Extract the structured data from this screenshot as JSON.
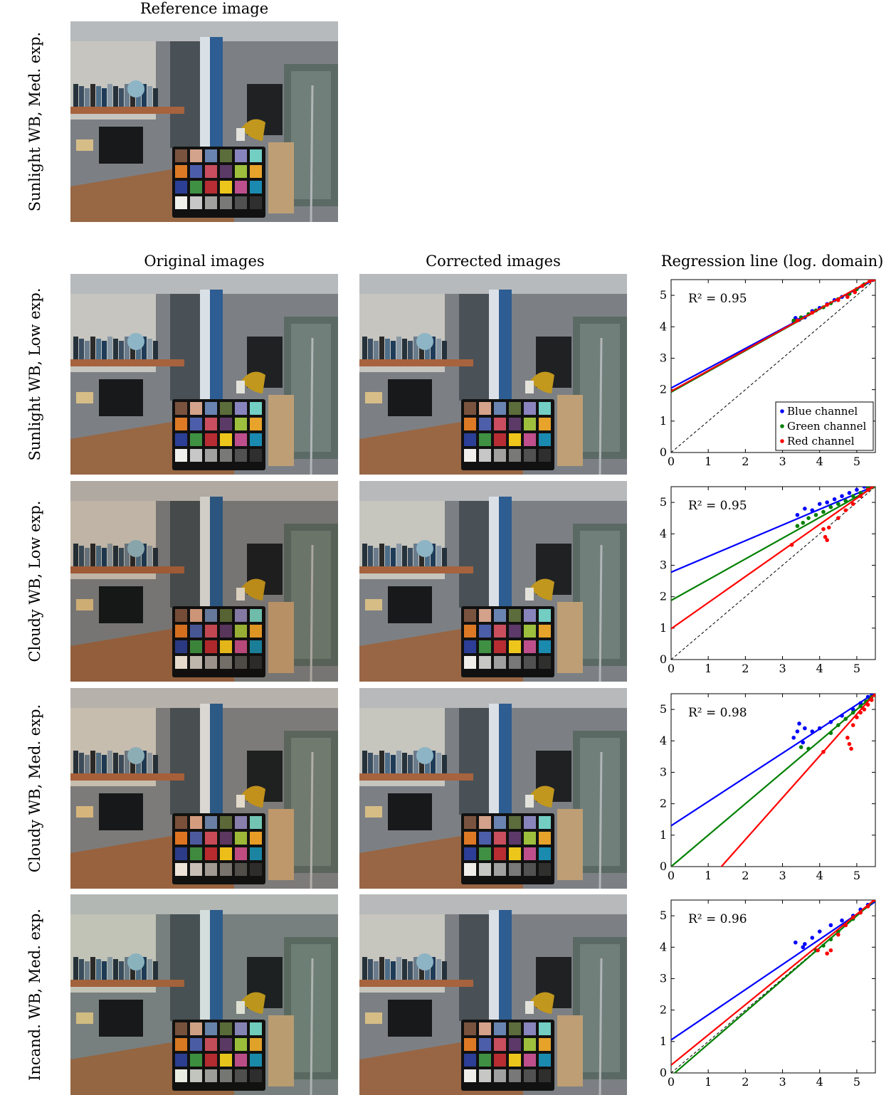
{
  "headers": {
    "reference": "Reference image",
    "original": "Original images",
    "corrected": "Corrected images",
    "regression": "Regression line (log. domain)"
  },
  "reference_row_label": "Sunlight WB, Med. exp.",
  "rows": [
    {
      "label": "Sunlight WB, Low exp.",
      "tint_original": "#f3f3ee",
      "tint_corrected": "#f5f3ee"
    },
    {
      "label": "Cloudy WB, Low exp.",
      "tint_original": "#c99b65",
      "tint_corrected": "#f3f0ea"
    },
    {
      "label": "Cloudy WB, Med. exp.",
      "tint_original": "#f1c89a",
      "tint_corrected": "#f2eee9"
    },
    {
      "label": "Incand. WB, Med. exp.",
      "tint_original": "#d6e5c3",
      "tint_corrected": "#f1efea"
    }
  ],
  "chart_colors": {
    "blue": "#0000ff",
    "green": "#008000",
    "red": "#ff0000"
  },
  "chart_data": [
    {
      "type": "scatter",
      "annotation": "R² = 0.95",
      "xlim": [
        0,
        5.5
      ],
      "ylim": [
        0,
        5.5
      ],
      "xticks": [
        0,
        1,
        2,
        3,
        4,
        5
      ],
      "yticks": [
        0,
        1,
        2,
        3,
        4,
        5
      ],
      "legend": {
        "position": "bottom-right",
        "entries": [
          "Blue channel",
          "Green channel",
          "Red channel"
        ]
      },
      "identity_line": true,
      "series": [
        {
          "name": "Blue channel",
          "color": "blue",
          "fit": {
            "intercept": 2.05,
            "slope": 0.63
          },
          "points": [
            [
              3.3,
              4.15
            ],
            [
              3.35,
              4.28
            ],
            [
              3.45,
              4.22
            ],
            [
              3.6,
              4.3
            ],
            [
              3.8,
              4.5
            ],
            [
              4.0,
              4.6
            ],
            [
              4.2,
              4.72
            ],
            [
              4.4,
              4.85
            ],
            [
              4.6,
              4.95
            ],
            [
              4.8,
              5.05
            ],
            [
              5.0,
              5.2
            ],
            [
              5.2,
              5.35
            ]
          ]
        },
        {
          "name": "Green channel",
          "color": "green",
          "fit": {
            "intercept": 1.92,
            "slope": 0.66
          },
          "points": [
            [
              3.3,
              4.2
            ],
            [
              3.5,
              4.3
            ],
            [
              3.7,
              4.4
            ],
            [
              3.9,
              4.52
            ],
            [
              4.1,
              4.62
            ],
            [
              4.3,
              4.75
            ],
            [
              4.5,
              4.88
            ],
            [
              4.8,
              5.05
            ],
            [
              5.0,
              5.2
            ],
            [
              5.2,
              5.35
            ],
            [
              5.35,
              5.45
            ]
          ]
        },
        {
          "name": "Red channel",
          "color": "red",
          "fit": {
            "intercept": 1.95,
            "slope": 0.655
          },
          "points": [
            [
              3.4,
              4.2
            ],
            [
              3.8,
              4.45
            ],
            [
              4.2,
              4.7
            ],
            [
              4.5,
              4.85
            ],
            [
              4.75,
              4.95
            ],
            [
              4.95,
              5.1
            ],
            [
              5.15,
              5.3
            ],
            [
              5.35,
              5.45
            ],
            [
              5.45,
              5.5
            ]
          ]
        }
      ]
    },
    {
      "type": "scatter",
      "annotation": "R² = 0.95",
      "xlim": [
        0,
        5.5
      ],
      "ylim": [
        0,
        5.5
      ],
      "xticks": [
        0,
        1,
        2,
        3,
        4,
        5
      ],
      "yticks": [
        0,
        1,
        2,
        3,
        4,
        5
      ],
      "identity_line": true,
      "series": [
        {
          "name": "Blue channel",
          "color": "blue",
          "fit": {
            "intercept": 2.78,
            "slope": 0.5
          },
          "points": [
            [
              3.4,
              4.6
            ],
            [
              3.6,
              4.8
            ],
            [
              3.8,
              4.75
            ],
            [
              4.0,
              4.95
            ],
            [
              4.2,
              5.0
            ],
            [
              4.4,
              5.1
            ],
            [
              4.6,
              5.2
            ],
            [
              4.8,
              5.3
            ],
            [
              5.0,
              5.4
            ],
            [
              5.2,
              5.5
            ]
          ]
        },
        {
          "name": "Green channel",
          "color": "green",
          "fit": {
            "intercept": 1.88,
            "slope": 0.66
          },
          "points": [
            [
              3.4,
              4.25
            ],
            [
              3.55,
              4.35
            ],
            [
              3.7,
              4.5
            ],
            [
              3.9,
              4.6
            ],
            [
              4.1,
              4.7
            ],
            [
              4.3,
              4.85
            ],
            [
              4.5,
              4.95
            ],
            [
              4.7,
              5.05
            ],
            [
              4.9,
              5.2
            ],
            [
              5.1,
              5.3
            ],
            [
              5.3,
              5.45
            ]
          ]
        },
        {
          "name": "Red channel",
          "color": "red",
          "fit": {
            "intercept": 0.98,
            "slope": 0.83
          },
          "points": [
            [
              3.25,
              3.65
            ],
            [
              4.1,
              4.15
            ],
            [
              4.15,
              3.9
            ],
            [
              4.2,
              3.8
            ],
            [
              4.25,
              4.2
            ],
            [
              4.5,
              4.5
            ],
            [
              4.7,
              4.75
            ],
            [
              4.9,
              4.95
            ],
            [
              5.1,
              5.2
            ],
            [
              5.3,
              5.4
            ],
            [
              5.4,
              5.5
            ]
          ]
        }
      ]
    },
    {
      "type": "scatter",
      "annotation": "R² = 0.98",
      "xlim": [
        0,
        5.5
      ],
      "ylim": [
        0,
        5.5
      ],
      "xticks": [
        0,
        1,
        2,
        3,
        4,
        5
      ],
      "yticks": [
        0,
        1,
        2,
        3,
        4,
        5
      ],
      "identity_line": true,
      "series": [
        {
          "name": "Blue channel",
          "color": "blue",
          "fit": {
            "intercept": 1.3,
            "slope": 0.77
          },
          "points": [
            [
              3.3,
              4.1
            ],
            [
              3.4,
              4.3
            ],
            [
              3.45,
              4.55
            ],
            [
              3.55,
              3.95
            ],
            [
              3.6,
              4.4
            ],
            [
              3.8,
              4.3
            ],
            [
              4.0,
              4.4
            ],
            [
              4.3,
              4.6
            ],
            [
              4.6,
              4.8
            ],
            [
              4.9,
              5.0
            ],
            [
              5.1,
              5.2
            ],
            [
              5.3,
              5.4
            ],
            [
              5.4,
              5.5
            ]
          ]
        },
        {
          "name": "Green channel",
          "color": "green",
          "fit": {
            "intercept": 0.0,
            "slope": 1.0
          },
          "points": [
            [
              3.5,
              3.8
            ],
            [
              3.7,
              3.75
            ],
            [
              4.3,
              4.25
            ],
            [
              4.5,
              4.5
            ],
            [
              4.7,
              4.7
            ],
            [
              4.9,
              4.9
            ],
            [
              5.1,
              5.1
            ],
            [
              5.25,
              5.25
            ],
            [
              5.4,
              5.4
            ],
            [
              5.5,
              5.5
            ]
          ]
        },
        {
          "name": "Red channel",
          "color": "red",
          "fit": {
            "intercept": -1.8,
            "slope": 1.33
          },
          "points": [
            [
              4.1,
              3.65
            ],
            [
              4.75,
              4.1
            ],
            [
              4.8,
              3.9
            ],
            [
              4.85,
              3.75
            ],
            [
              4.9,
              4.5
            ],
            [
              5.0,
              4.75
            ],
            [
              5.1,
              4.9
            ],
            [
              5.2,
              5.0
            ],
            [
              5.3,
              5.15
            ],
            [
              5.4,
              5.3
            ],
            [
              5.5,
              5.45
            ]
          ]
        }
      ]
    },
    {
      "type": "scatter",
      "annotation": "R² = 0.96",
      "xlim": [
        0,
        5.5
      ],
      "ylim": [
        0,
        5.5
      ],
      "xticks": [
        0,
        1,
        2,
        3,
        4,
        5
      ],
      "yticks": [
        0,
        1,
        2,
        3,
        4,
        5
      ],
      "identity_line": true,
      "series": [
        {
          "name": "Blue channel",
          "color": "blue",
          "fit": {
            "intercept": 1.05,
            "slope": 0.8
          },
          "points": [
            [
              3.35,
              4.15
            ],
            [
              3.55,
              4.0
            ],
            [
              3.6,
              4.1
            ],
            [
              3.8,
              4.3
            ],
            [
              4.0,
              4.5
            ],
            [
              4.3,
              4.7
            ],
            [
              4.6,
              4.85
            ],
            [
              4.9,
              5.0
            ],
            [
              5.1,
              5.2
            ],
            [
              5.3,
              5.35
            ],
            [
              5.45,
              5.5
            ]
          ]
        },
        {
          "name": "Green channel",
          "color": "green",
          "fit": {
            "intercept": -0.1,
            "slope": 1.02
          },
          "points": [
            [
              3.9,
              3.9
            ],
            [
              4.1,
              4.05
            ],
            [
              4.3,
              4.25
            ],
            [
              4.5,
              4.5
            ],
            [
              4.7,
              4.7
            ],
            [
              4.9,
              4.9
            ],
            [
              5.1,
              5.1
            ],
            [
              5.3,
              5.3
            ],
            [
              5.5,
              5.5
            ]
          ]
        },
        {
          "name": "Red channel",
          "color": "red",
          "fit": {
            "intercept": 0.25,
            "slope": 0.96
          },
          "points": [
            [
              3.95,
              3.9
            ],
            [
              4.2,
              3.8
            ],
            [
              4.3,
              3.9
            ],
            [
              4.5,
              4.4
            ],
            [
              4.7,
              4.7
            ],
            [
              4.9,
              4.95
            ],
            [
              5.1,
              5.1
            ],
            [
              5.3,
              5.3
            ],
            [
              5.45,
              5.5
            ]
          ]
        }
      ]
    }
  ]
}
